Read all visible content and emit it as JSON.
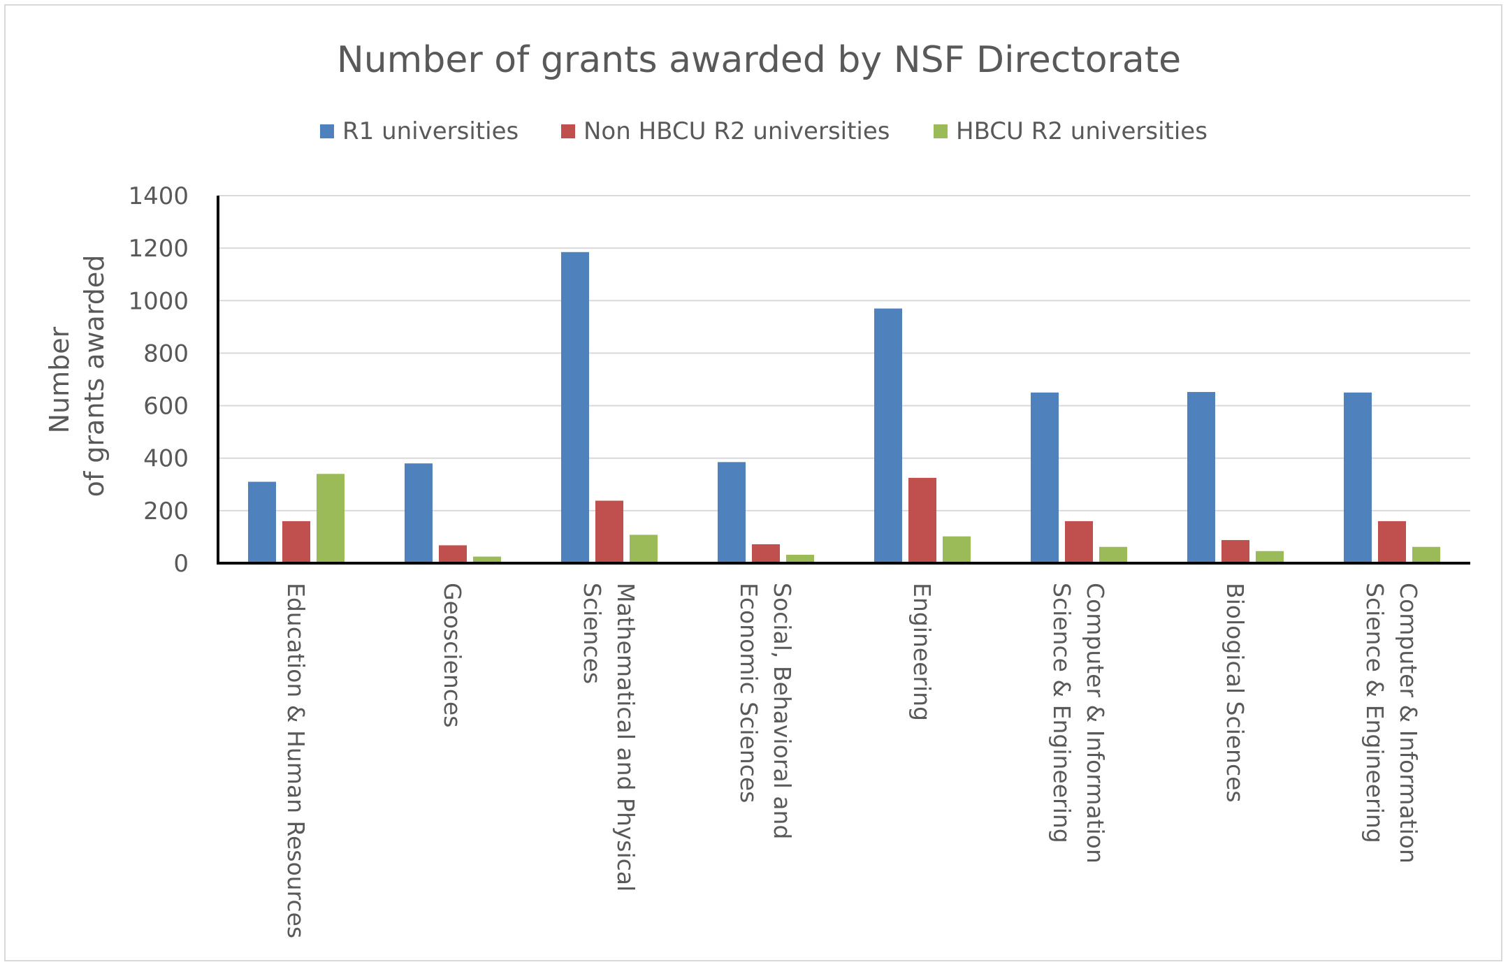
{
  "chart_data": {
    "type": "bar",
    "title": "Number of grants awarded by NSF Directorate",
    "ylabel_lines": [
      "Number",
      "of grants awarded"
    ],
    "xlabel": "",
    "ylim": [
      0,
      1400
    ],
    "yticks": [
      0,
      200,
      400,
      600,
      800,
      1000,
      1200,
      1400
    ],
    "grid": true,
    "legend_position": "top",
    "category_lines": [
      [
        "Education & Human Resources"
      ],
      [
        "Geosciences"
      ],
      [
        "Mathematical and Physical",
        "Sciences"
      ],
      [
        "Social, Behavioral and",
        "Economic Sciences"
      ],
      [
        "Engineering"
      ],
      [
        "Computer & Information",
        "Science & Engineering"
      ],
      [
        "Biological Sciences"
      ],
      [
        "Computer & Information",
        "Science & Engineering"
      ]
    ],
    "series": [
      {
        "name": "R1 universities",
        "color": "#4f81bd",
        "values": [
          310,
          380,
          1185,
          385,
          970,
          650,
          652,
          650
        ]
      },
      {
        "name": "Non HBCU R2 universities",
        "color": "#c0504d",
        "values": [
          160,
          68,
          238,
          72,
          325,
          160,
          88,
          160
        ]
      },
      {
        "name": "HBCU R2 universities",
        "color": "#9bbb59",
        "values": [
          340,
          25,
          108,
          32,
          102,
          62,
          46,
          62
        ]
      }
    ]
  }
}
